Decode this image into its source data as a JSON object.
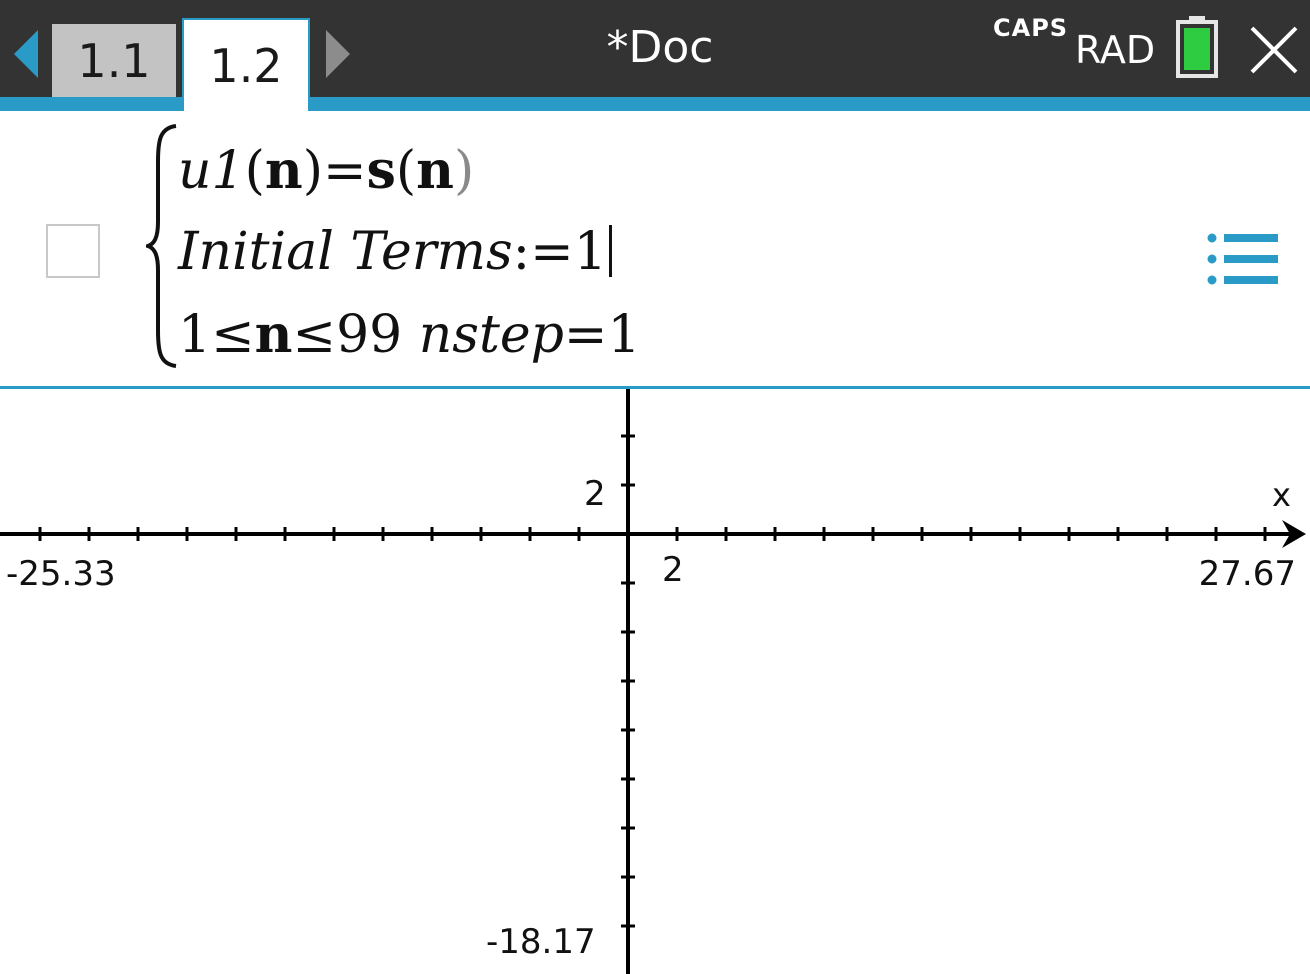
{
  "header": {
    "tabs": [
      {
        "label": "1.1",
        "active": false
      },
      {
        "label": "1.2",
        "active": true
      }
    ],
    "doc_title": "*Doc",
    "caps_indicator": "CAPS",
    "angle_mode": "RAD",
    "battery_color": "#2ecc40"
  },
  "entry": {
    "line1": {
      "name": "u1",
      "arg": "n",
      "eq": "=",
      "func": "s",
      "func_arg": "n"
    },
    "line2": {
      "label": "Initial Terms",
      "assign": ":=",
      "value": "1"
    },
    "line3": {
      "start": "1",
      "le1": "≤",
      "var": "n",
      "le2": "≤",
      "end": "99",
      "step_label": "nstep",
      "eq": "=",
      "step": "1"
    }
  },
  "graph": {
    "xmin_label": "-25.33",
    "xmax_label": "27.67",
    "ymin_label": "-18.17",
    "x_tick_label": "2",
    "y_tick_label": "2",
    "x_axis_name": "x"
  },
  "colors": {
    "accent": "#2a9ac6",
    "topbar": "#333333"
  }
}
